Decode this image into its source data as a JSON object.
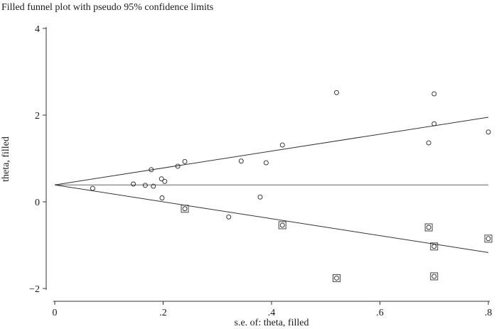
{
  "chart_data": {
    "type": "scatter",
    "title": "Filled funnel plot with pseudo 95% confidence limits",
    "xlabel": "s.e. of: theta, filled",
    "ylabel": "theta, filled",
    "xlim": [
      0,
      0.8
    ],
    "ylim": [
      -2,
      4
    ],
    "x_ticks": [
      0,
      0.2,
      0.4,
      0.6,
      0.8
    ],
    "x_tick_labels": [
      "0",
      ".2",
      ".4",
      ".6",
      ".8"
    ],
    "y_ticks": [
      -2,
      0,
      2,
      4
    ],
    "y_tick_labels": [
      "−2",
      "0",
      "2",
      "4"
    ],
    "grid": false,
    "pooled_estimate": 0.39,
    "ci_lines": {
      "upper": [
        [
          0,
          0.39
        ],
        [
          0.8,
          1.95
        ]
      ],
      "lower": [
        [
          0,
          0.39
        ],
        [
          0.8,
          -1.17
        ]
      ]
    },
    "series": [
      {
        "marker": "circle",
        "points": [
          [
            0.07,
            0.31
          ],
          [
            0.145,
            0.41
          ],
          [
            0.167,
            0.38
          ],
          [
            0.178,
            0.74
          ],
          [
            0.182,
            0.36
          ],
          [
            0.197,
            0.53
          ],
          [
            0.198,
            0.09
          ],
          [
            0.203,
            0.47
          ],
          [
            0.227,
            0.82
          ],
          [
            0.24,
            0.93
          ],
          [
            0.24,
            -0.16
          ],
          [
            0.321,
            -0.35
          ],
          [
            0.344,
            0.94
          ],
          [
            0.379,
            0.11
          ],
          [
            0.39,
            0.9
          ],
          [
            0.42,
            1.31
          ],
          [
            0.42,
            -0.54
          ],
          [
            0.52,
            2.52
          ],
          [
            0.52,
            -1.76
          ],
          [
            0.69,
            1.36
          ],
          [
            0.69,
            -0.59
          ],
          [
            0.7,
            2.49
          ],
          [
            0.7,
            1.8
          ],
          [
            0.7,
            -1.03
          ],
          [
            0.7,
            -1.72
          ],
          [
            0.8,
            1.61
          ],
          [
            0.8,
            -0.85
          ]
        ]
      },
      {
        "marker": "square",
        "points": [
          [
            0.24,
            -0.16
          ],
          [
            0.42,
            -0.54
          ],
          [
            0.52,
            -1.76
          ],
          [
            0.69,
            -0.59
          ],
          [
            0.7,
            -1.03
          ],
          [
            0.7,
            -1.72
          ],
          [
            0.8,
            -0.85
          ]
        ]
      }
    ]
  }
}
